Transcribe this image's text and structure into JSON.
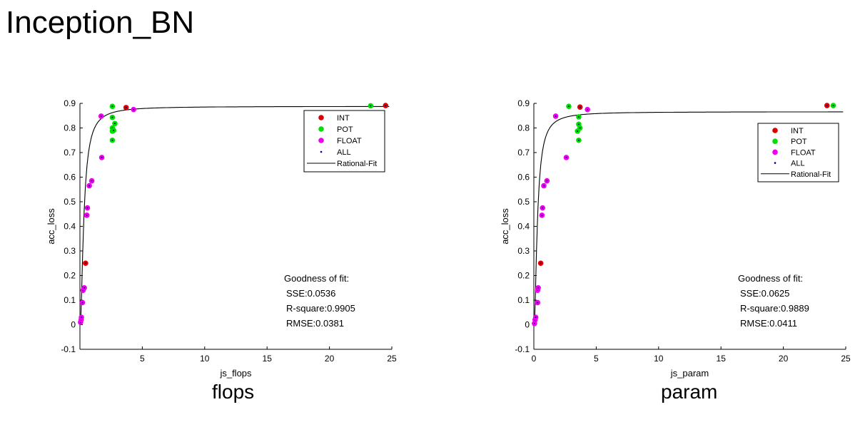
{
  "page_title": "Inception_BN",
  "chart_data": [
    {
      "type": "scatter",
      "subtitle": "flops",
      "xlabel": "js_flops",
      "ylabel": "acc_loss",
      "xlim": [
        0,
        25
      ],
      "ylim": [
        -0.1,
        0.9
      ],
      "xticks": [
        5,
        10,
        15,
        20,
        25
      ],
      "yticks": [
        -0.1,
        0,
        0.1,
        0.2,
        0.3,
        0.4,
        0.5,
        0.6,
        0.7,
        0.8,
        0.9
      ],
      "xtick_labels": [
        "5",
        "10",
        "15",
        "20",
        "25"
      ],
      "ytick_labels": [
        "-0.1",
        "0",
        "0.1",
        "0.2",
        "0.3",
        "0.4",
        "0.5",
        "0.6",
        "0.7",
        "0.8",
        "0.9"
      ],
      "grid": false,
      "legend_position": "top-right",
      "legend": [
        "INT",
        "POT",
        "FLOAT",
        "ALL",
        "Rational-Fit"
      ],
      "colors": {
        "INT": "#dd0000",
        "POT": "#00e000",
        "FLOAT": "#ee00ee",
        "ALL": "#000080",
        "fit": "#000000"
      },
      "series": [
        {
          "name": "INT",
          "points": [
            [
              0.45,
              0.25
            ],
            [
              3.7,
              0.883
            ],
            [
              24.5,
              0.891
            ]
          ]
        },
        {
          "name": "POT",
          "points": [
            [
              2.6,
              0.888
            ],
            [
              2.6,
              0.843
            ],
            [
              2.6,
              0.8
            ],
            [
              2.6,
              0.787
            ],
            [
              2.6,
              0.75
            ],
            [
              2.8,
              0.818
            ],
            [
              2.7,
              0.79
            ],
            [
              23.3,
              0.89
            ]
          ]
        },
        {
          "name": "FLOAT",
          "points": [
            [
              0.05,
              0.01
            ],
            [
              0.1,
              0.02
            ],
            [
              0.12,
              0.03
            ],
            [
              0.2,
              0.09
            ],
            [
              0.25,
              0.14
            ],
            [
              0.35,
              0.15
            ],
            [
              0.55,
              0.445
            ],
            [
              0.6,
              0.475
            ],
            [
              0.75,
              0.565
            ],
            [
              0.95,
              0.585
            ],
            [
              1.75,
              0.68
            ],
            [
              1.7,
              0.848
            ],
            [
              4.3,
              0.875
            ]
          ]
        }
      ],
      "fit": {
        "name": "Rational-Fit",
        "a": 0.888,
        "b": 0.55,
        "x0": 0.04
      },
      "goodness": {
        "title": "Goodness of fit:",
        "sse": "SSE:0.0536",
        "rsquare": "R-square:0.9905",
        "rmse": "RMSE:0.0381"
      }
    },
    {
      "type": "scatter",
      "subtitle": "param",
      "xlabel": "js_param",
      "ylabel": "acc_loss",
      "xlim": [
        0,
        25
      ],
      "ylim": [
        -0.1,
        0.9
      ],
      "xticks": [
        0,
        5,
        10,
        15,
        20,
        25
      ],
      "yticks": [
        -0.1,
        0,
        0.1,
        0.2,
        0.3,
        0.4,
        0.5,
        0.6,
        0.7,
        0.8,
        0.9
      ],
      "xtick_labels": [
        "0",
        "5",
        "10",
        "15",
        "20",
        "25"
      ],
      "ytick_labels": [
        "-0.1",
        "0",
        "0.1",
        "0.2",
        "0.3",
        "0.4",
        "0.5",
        "0.6",
        "0.7",
        "0.8",
        "0.9"
      ],
      "grid": false,
      "legend_position": "top-right",
      "legend": [
        "INT",
        "POT",
        "FLOAT",
        "ALL",
        "Rational-Fit"
      ],
      "colors": {
        "INT": "#dd0000",
        "POT": "#00e000",
        "FLOAT": "#ee00ee",
        "ALL": "#000080",
        "fit": "#000000"
      },
      "series": [
        {
          "name": "INT",
          "points": [
            [
              0.55,
              0.25
            ],
            [
              3.7,
              0.885
            ],
            [
              23.5,
              0.891
            ]
          ]
        },
        {
          "name": "POT",
          "points": [
            [
              2.8,
              0.888
            ],
            [
              3.6,
              0.845
            ],
            [
              3.6,
              0.815
            ],
            [
              3.7,
              0.8
            ],
            [
              3.5,
              0.787
            ],
            [
              3.6,
              0.75
            ],
            [
              24.0,
              0.891
            ]
          ]
        },
        {
          "name": "FLOAT",
          "points": [
            [
              0.05,
              0.005
            ],
            [
              0.1,
              0.02
            ],
            [
              0.15,
              0.03
            ],
            [
              0.3,
              0.09
            ],
            [
              0.3,
              0.14
            ],
            [
              0.35,
              0.15
            ],
            [
              0.65,
              0.445
            ],
            [
              0.7,
              0.475
            ],
            [
              0.8,
              0.565
            ],
            [
              1.05,
              0.585
            ],
            [
              2.6,
              0.68
            ],
            [
              1.75,
              0.848
            ],
            [
              4.3,
              0.875
            ]
          ]
        }
      ],
      "fit": {
        "name": "Rational-Fit",
        "a": 0.866,
        "b": 0.5,
        "x0": 0.04
      },
      "goodness": {
        "title": "Goodness of fit:",
        "sse": "SSE:0.0625",
        "rsquare": "R-square:0.9889",
        "rmse": "RMSE:0.0411"
      }
    }
  ]
}
